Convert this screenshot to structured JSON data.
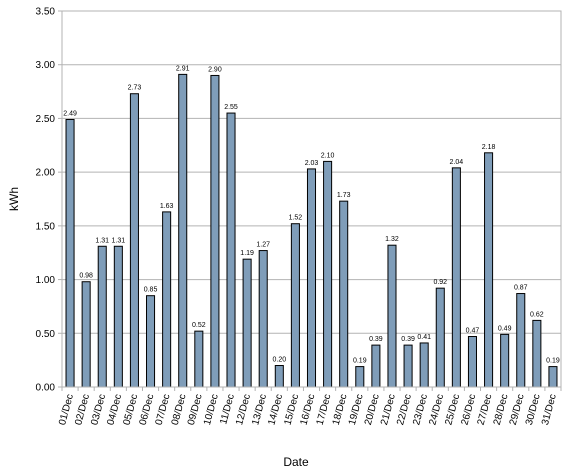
{
  "chart_data": {
    "type": "bar",
    "title": "",
    "xlabel": "Date",
    "ylabel": "kWh",
    "ylim": [
      0,
      3.5
    ],
    "yticks": [
      "0.00",
      "0.50",
      "1.00",
      "1.50",
      "2.00",
      "2.50",
      "3.00",
      "3.50"
    ],
    "grid": true,
    "bar_color": "#7f9db9",
    "categories": [
      "01/Dec",
      "02/Dec",
      "03/Dec",
      "04/Dec",
      "05/Dec",
      "06/Dec",
      "07/Dec",
      "08/Dec",
      "09/Dec",
      "10/Dec",
      "11/Dec",
      "12/Dec",
      "13/Dec",
      "14/Dec",
      "15/Dec",
      "16/Dec",
      "17/Dec",
      "18/Dec",
      "19/Dec",
      "20/Dec",
      "21/Dec",
      "22/Dec",
      "23/Dec",
      "24/Dec",
      "25/Dec",
      "26/Dec",
      "27/Dec",
      "28/Dec",
      "29/Dec",
      "30/Dec",
      "31/Dec"
    ],
    "values": [
      2.49,
      0.98,
      1.31,
      1.31,
      2.73,
      0.85,
      1.63,
      2.91,
      0.52,
      2.9,
      2.55,
      1.19,
      1.27,
      0.2,
      1.52,
      2.03,
      2.1,
      1.73,
      0.19,
      0.39,
      1.32,
      0.39,
      0.41,
      0.92,
      2.04,
      0.47,
      2.18,
      0.49,
      0.87,
      0.62,
      0.19
    ],
    "data_labels": [
      "2.49",
      "0.98",
      "1.31",
      "1.31",
      "2.73",
      "0.85",
      "1.63",
      "2.91",
      "0.52",
      "2.90",
      "2.55",
      "1.19",
      "1.27",
      "0.20",
      "1.52",
      "2.03",
      "2.10",
      "1.73",
      "0.19",
      "0.39",
      "1.32",
      "0.39",
      "0.41",
      "0.92",
      "2.04",
      "0.47",
      "2.18",
      "0.49",
      "0.87",
      "0.62",
      "0.19"
    ]
  }
}
